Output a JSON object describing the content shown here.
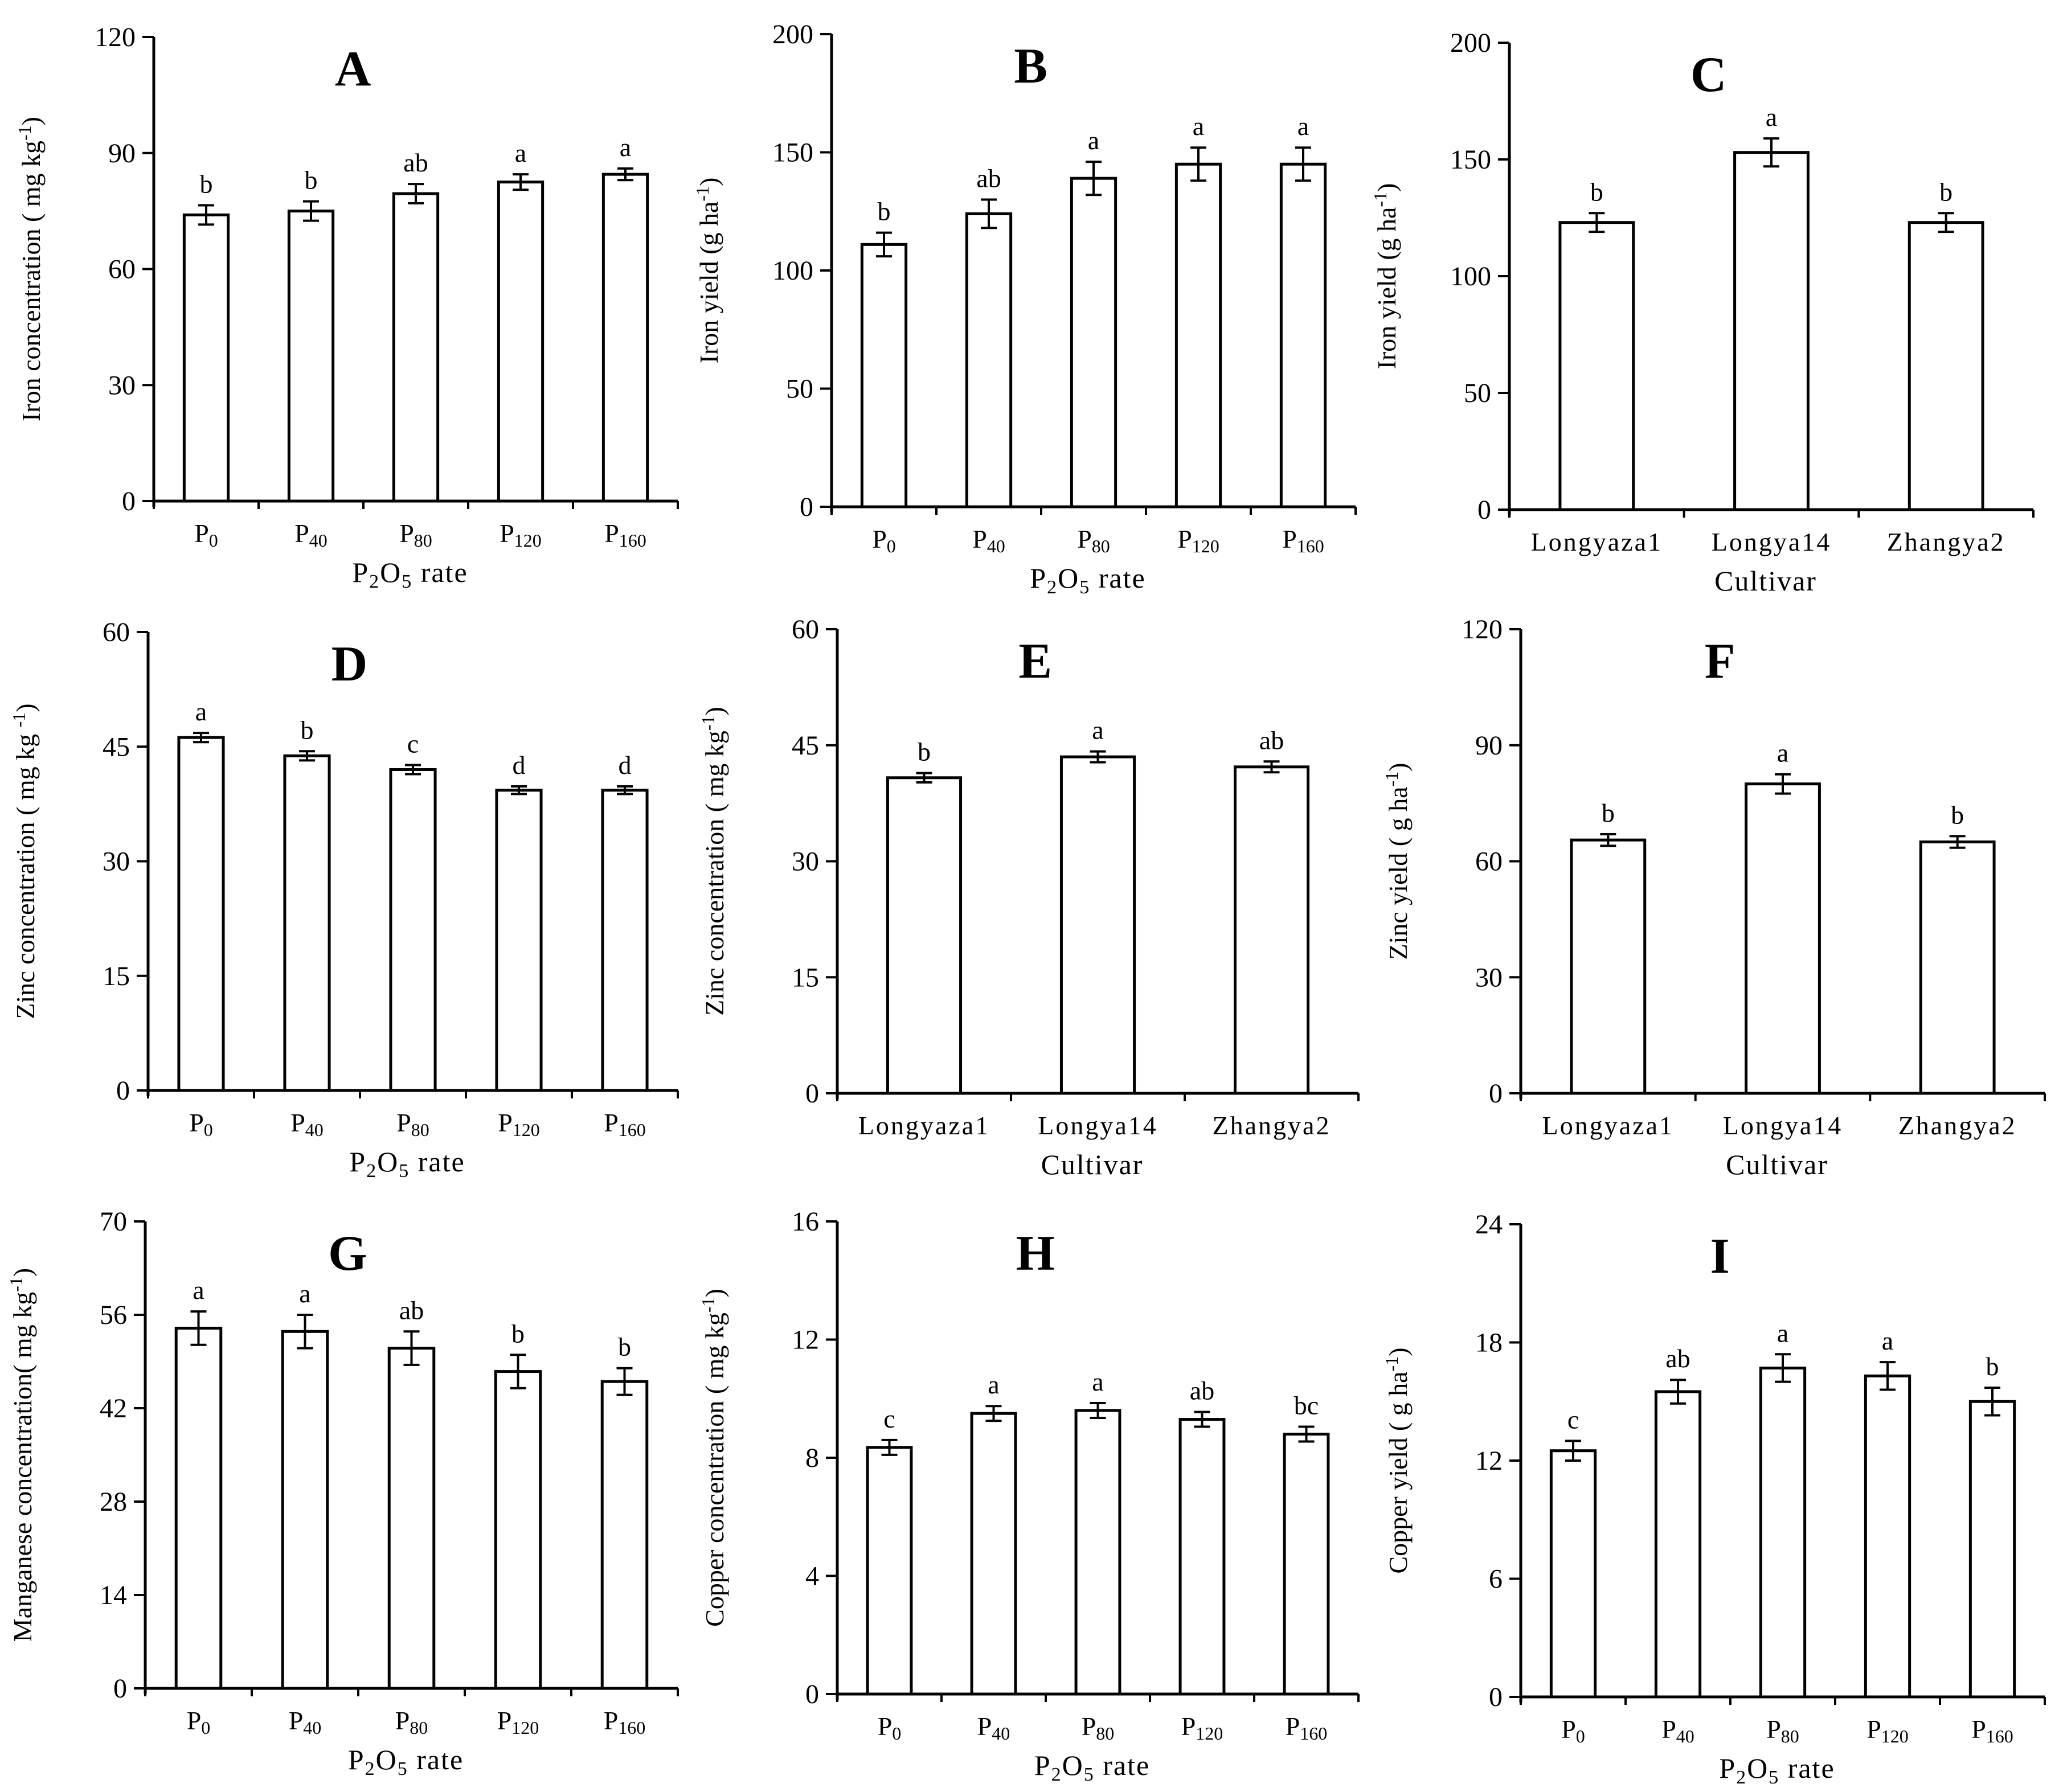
{
  "chart_data": [
    {
      "type": "bar",
      "panel": "A",
      "categories": [
        "P0",
        "P40",
        "P80",
        "P120",
        "P160"
      ],
      "category_labels": [
        [
          "P",
          "0"
        ],
        [
          "P",
          "40"
        ],
        [
          "P",
          "80"
        ],
        [
          "P",
          "120"
        ],
        [
          "P",
          "160"
        ]
      ],
      "values": [
        74,
        75,
        79.5,
        82.5,
        84.5
      ],
      "errors": [
        2.5,
        2.5,
        2.5,
        2.0,
        1.5
      ],
      "letters": [
        "b",
        "b",
        "ab",
        "a",
        "a"
      ],
      "ylim": [
        0,
        120
      ],
      "yticks": [
        0,
        30,
        60,
        90,
        120
      ],
      "ylabel": "Iron  concentration ( mg  kg-1)",
      "xlabel": "P2O5 rate"
    },
    {
      "type": "bar",
      "panel": "B",
      "categories": [
        "P0",
        "P40",
        "P80",
        "P120",
        "P160"
      ],
      "category_labels": [
        [
          "P",
          "0"
        ],
        [
          "P",
          "40"
        ],
        [
          "P",
          "80"
        ],
        [
          "P",
          "120"
        ],
        [
          "P",
          "160"
        ]
      ],
      "values": [
        111,
        124,
        139,
        145,
        145
      ],
      "errors": [
        5,
        6,
        7,
        7,
        7
      ],
      "letters": [
        "b",
        "ab",
        "a",
        "a",
        "a"
      ],
      "ylim": [
        0,
        200
      ],
      "yticks": [
        0,
        50,
        100,
        150,
        200
      ],
      "ylabel": "Iron  yield (g  ha-1)",
      "xlabel": "P2O5 rate"
    },
    {
      "type": "bar",
      "panel": "C",
      "categories": [
        "Longyaza1",
        "Longya14",
        "Zhangya2"
      ],
      "values": [
        123,
        153,
        123
      ],
      "errors": [
        4,
        6,
        4
      ],
      "letters": [
        "b",
        "a",
        "b"
      ],
      "ylim": [
        0,
        200
      ],
      "yticks": [
        0,
        50,
        100,
        150,
        200
      ],
      "ylabel": "Iron  yield (g  ha-1)",
      "xlabel": "Cultivar"
    },
    {
      "type": "bar",
      "panel": "D",
      "categories": [
        "P0",
        "P40",
        "P80",
        "P120",
        "P160"
      ],
      "category_labels": [
        [
          "P",
          "0"
        ],
        [
          "P",
          "40"
        ],
        [
          "P",
          "80"
        ],
        [
          "P",
          "120"
        ],
        [
          "P",
          "160"
        ]
      ],
      "values": [
        46.2,
        43.8,
        42.0,
        39.3,
        39.3
      ],
      "errors": [
        0.6,
        0.6,
        0.6,
        0.5,
        0.5
      ],
      "letters": [
        "a",
        "b",
        "c",
        "d",
        "d"
      ],
      "ylim": [
        0,
        60
      ],
      "yticks": [
        0,
        15,
        30,
        45,
        60
      ],
      "ylabel": "Zinc concentration ( mg  kg -1)",
      "xlabel": "P2O5 rate"
    },
    {
      "type": "bar",
      "panel": "E",
      "categories": [
        "Longyaza1",
        "Longya14",
        "Zhangya2"
      ],
      "values": [
        40.8,
        43.5,
        42.2
      ],
      "errors": [
        0.6,
        0.7,
        0.7
      ],
      "letters": [
        "b",
        "a",
        "ab"
      ],
      "ylim": [
        0,
        60
      ],
      "yticks": [
        0,
        15,
        30,
        45,
        60
      ],
      "ylabel": "Zinc concentration ( mg  kg-1)",
      "xlabel": "Cultivar"
    },
    {
      "type": "bar",
      "panel": "F",
      "categories": [
        "Longyaza1",
        "Longya14",
        "Zhangya2"
      ],
      "values": [
        65.5,
        80,
        65
      ],
      "errors": [
        1.5,
        2.5,
        1.5
      ],
      "letters": [
        "b",
        "a",
        "b"
      ],
      "ylim": [
        0,
        120
      ],
      "yticks": [
        0,
        30,
        60,
        90,
        120
      ],
      "ylabel": "Zinc  yield ( g  ha-1)",
      "xlabel": "Cultivar"
    },
    {
      "type": "bar",
      "panel": "G",
      "categories": [
        "P0",
        "P40",
        "P80",
        "P120",
        "P160"
      ],
      "category_labels": [
        [
          "P",
          "0"
        ],
        [
          "P",
          "40"
        ],
        [
          "P",
          "80"
        ],
        [
          "P",
          "120"
        ],
        [
          "P",
          "160"
        ]
      ],
      "values": [
        54,
        53.5,
        51,
        47.5,
        46
      ],
      "errors": [
        2.5,
        2.5,
        2.5,
        2.5,
        2.0
      ],
      "letters": [
        "a",
        "a",
        "ab",
        "b",
        "b"
      ],
      "ylim": [
        0,
        70
      ],
      "yticks": [
        0,
        14,
        28,
        42,
        56,
        70
      ],
      "ylabel": "Manganese concentration( mg  kg-1)",
      "xlabel": "P2O5 rate"
    },
    {
      "type": "bar",
      "panel": "H",
      "categories": [
        "P0",
        "P40",
        "P80",
        "P120",
        "P160"
      ],
      "category_labels": [
        [
          "P",
          "0"
        ],
        [
          "P",
          "40"
        ],
        [
          "P",
          "80"
        ],
        [
          "P",
          "120"
        ],
        [
          "P",
          "160"
        ]
      ],
      "values": [
        8.35,
        9.5,
        9.6,
        9.3,
        8.8
      ],
      "errors": [
        0.25,
        0.25,
        0.25,
        0.25,
        0.25
      ],
      "letters": [
        "c",
        "a",
        "a",
        "ab",
        "bc"
      ],
      "ylim": [
        0,
        16
      ],
      "yticks": [
        0,
        4,
        8,
        12,
        16
      ],
      "ylabel": "Copper concentration ( mg  kg-1)",
      "xlabel": "P2O5 rate"
    },
    {
      "type": "bar",
      "panel": "I",
      "categories": [
        "P0",
        "P40",
        "P80",
        "P120",
        "P160"
      ],
      "category_labels": [
        [
          "P",
          "0"
        ],
        [
          "P",
          "40"
        ],
        [
          "P",
          "80"
        ],
        [
          "P",
          "120"
        ],
        [
          "P",
          "160"
        ]
      ],
      "values": [
        12.5,
        15.5,
        16.7,
        16.3,
        15.0
      ],
      "errors": [
        0.5,
        0.6,
        0.7,
        0.7,
        0.7
      ],
      "letters": [
        "c",
        "ab",
        "a",
        "a",
        "b"
      ],
      "ylim": [
        0,
        24
      ],
      "yticks": [
        0,
        6,
        12,
        18,
        24
      ],
      "ylabel": "Copper  yield ( g  ha-1)",
      "xlabel": "P2O5 rate"
    }
  ]
}
